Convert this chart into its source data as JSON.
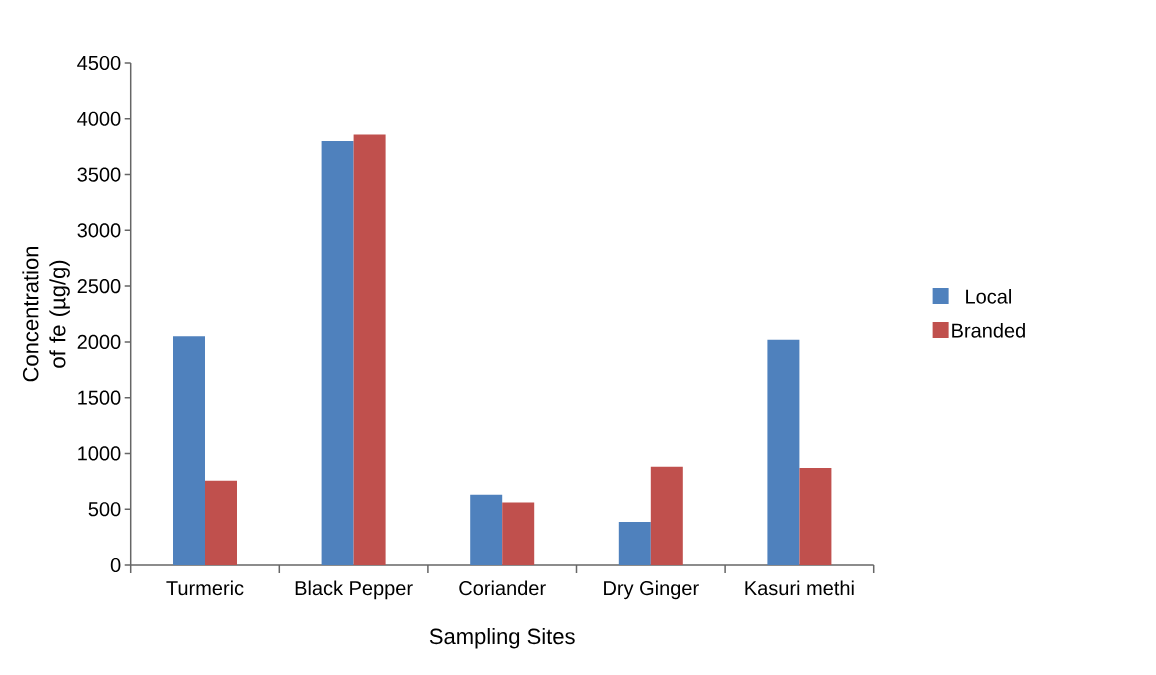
{
  "chart_data": {
    "type": "bar",
    "xlabel": "Sampling Sites",
    "ylabel": "Concentration of fe (µg/g)",
    "categories": [
      "Turmeric",
      "Black Pepper",
      "Coriander",
      "Dry Ginger",
      "Kasuri methi"
    ],
    "series": [
      {
        "name": "Local",
        "color": "#4f81bd",
        "values": [
          2050,
          3800,
          630,
          385,
          2020
        ]
      },
      {
        "name": "Branded",
        "color": "#c0504d",
        "values": [
          755,
          3860,
          560,
          880,
          870
        ]
      }
    ],
    "ylim": [
      0,
      4500
    ],
    "yticks": [
      0,
      500,
      1000,
      1500,
      2000,
      2500,
      3000,
      3500,
      4000,
      4500
    ],
    "grid": false,
    "legend": "right"
  }
}
